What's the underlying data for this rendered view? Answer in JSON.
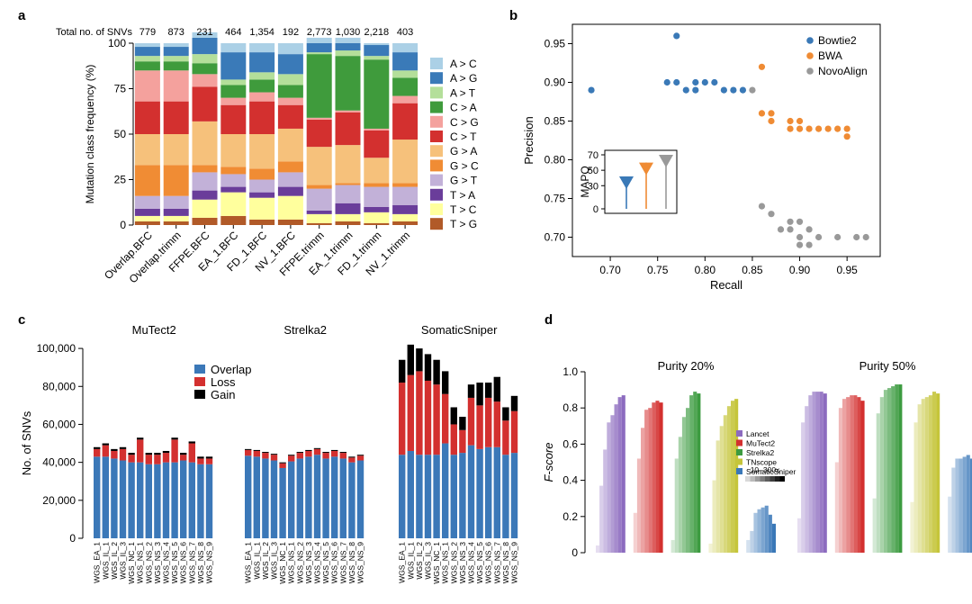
{
  "colors": {
    "A>C": "#abd0e6",
    "A>G": "#3a7ab8",
    "A>T": "#b4df9a",
    "C>A": "#3f9b3c",
    "C>G": "#f4a19d",
    "C>T": "#d3302f",
    "G>A": "#f6c17b",
    "G>C": "#f08c34",
    "G>T": "#c2b1d8",
    "T>A": "#6a3d9a",
    "T>C": "#ffff9d",
    "T>G": "#b15a28",
    "bowtie": "#3a79b7",
    "bwa": "#ef8b34",
    "novo": "#999999",
    "overlap": "#3b78b8",
    "loss": "#d3302f",
    "gain": "#000000",
    "lancet": "#8c6bbf",
    "mutect": "#d3302f",
    "strelka": "#3c9b40",
    "tnscope": "#c5c53a",
    "somatic": "#3a78b8"
  },
  "panel_a": {
    "letter": "a",
    "header_label": "Total no. of SNVs",
    "totals": [
      "779",
      "873",
      "231",
      "464",
      "1,354",
      "192",
      "2,773",
      "1,030",
      "2,218",
      "403"
    ]
  },
  "panel_b": {
    "letter": "b"
  },
  "panel_c": {
    "letter": "c"
  },
  "panel_d": {
    "letter": "d"
  },
  "chart_data": [
    {
      "type": "bar",
      "stacked": true,
      "title": "",
      "ylabel": "Mutation class frequency (%)",
      "ylim": [
        0,
        100
      ],
      "yticks": [
        "0",
        "25",
        "50",
        "75",
        "100"
      ],
      "categories": [
        "Overlap.BFC",
        "Overlap.trimm",
        "FFPE.BFC",
        "EA_1.BFC",
        "FD_1.BFC",
        "NV_1.BFC",
        "FFPE.trimm",
        "EA_1.trimm",
        "FD_1.trimm",
        "NV_1.trimm"
      ],
      "legend": [
        "A > C",
        "A > G",
        "A > T",
        "C > A",
        "C > G",
        "C > T",
        "G > A",
        "G > C",
        "G > T",
        "T > A",
        "T > C",
        "T > G"
      ],
      "series": [
        {
          "name": "T > G",
          "key": "T>G",
          "values": [
            2,
            2,
            4,
            5,
            3,
            3,
            1,
            2,
            1,
            2
          ]
        },
        {
          "name": "T > C",
          "key": "T>C",
          "values": [
            3,
            3,
            10,
            13,
            12,
            13,
            5,
            4,
            6,
            4
          ]
        },
        {
          "name": "T > A",
          "key": "T>A",
          "values": [
            4,
            4,
            5,
            3,
            3,
            5,
            2,
            6,
            3,
            5
          ]
        },
        {
          "name": "G > T",
          "key": "G>T",
          "values": [
            7,
            7,
            10,
            7,
            7,
            8,
            12,
            10,
            11,
            10
          ]
        },
        {
          "name": "G > C",
          "key": "G>C",
          "values": [
            17,
            17,
            4,
            4,
            6,
            6,
            2,
            1,
            2,
            2
          ]
        },
        {
          "name": "G > A",
          "key": "G>A",
          "values": [
            17,
            17,
            24,
            18,
            19,
            18,
            21,
            21,
            14,
            24
          ]
        },
        {
          "name": "C > T",
          "key": "C>T",
          "values": [
            18,
            18,
            19,
            16,
            18,
            13,
            15,
            18,
            15,
            20
          ]
        },
        {
          "name": "C > G",
          "key": "C>G",
          "values": [
            17,
            17,
            7,
            4,
            5,
            4,
            1,
            1,
            1,
            4
          ]
        },
        {
          "name": "C > A",
          "key": "C>A",
          "values": [
            5,
            5,
            6,
            7,
            7,
            7,
            35,
            30,
            38,
            10
          ]
        },
        {
          "name": "A > T",
          "key": "A>T",
          "values": [
            3,
            3,
            5,
            3,
            4,
            6,
            1,
            3,
            2,
            4
          ]
        },
        {
          "name": "A > G",
          "key": "A>G",
          "values": [
            5,
            5,
            9,
            15,
            11,
            11,
            5,
            4,
            6,
            10
          ]
        },
        {
          "name": "A > C",
          "key": "A>C",
          "values": [
            2,
            2,
            3,
            5,
            5,
            6,
            3,
            3,
            1,
            5
          ]
        }
      ]
    },
    {
      "type": "scatter",
      "xlabel": "Recall",
      "ylabel": "Precision",
      "xlim": [
        0.66,
        0.985
      ],
      "ylim": [
        0.675,
        0.975
      ],
      "xticks": [
        "0.70",
        "0.75",
        "0.80",
        "0.85",
        "0.90",
        "0.95"
      ],
      "yticks": [
        "0.70",
        "0.75",
        "0.80",
        "0.85",
        "0.90",
        "0.95"
      ],
      "series": [
        {
          "name": "Bowtie2",
          "key": "bowtie",
          "points": [
            [
              0.68,
              0.89
            ],
            [
              0.77,
              0.96
            ],
            [
              0.76,
              0.9
            ],
            [
              0.77,
              0.9
            ],
            [
              0.78,
              0.89
            ],
            [
              0.79,
              0.9
            ],
            [
              0.8,
              0.9
            ],
            [
              0.81,
              0.9
            ],
            [
              0.82,
              0.89
            ],
            [
              0.83,
              0.89
            ],
            [
              0.84,
              0.89
            ],
            [
              0.79,
              0.89
            ]
          ]
        },
        {
          "name": "BWA",
          "key": "bwa",
          "points": [
            [
              0.86,
              0.92
            ],
            [
              0.86,
              0.86
            ],
            [
              0.87,
              0.86
            ],
            [
              0.87,
              0.85
            ],
            [
              0.89,
              0.85
            ],
            [
              0.9,
              0.85
            ],
            [
              0.89,
              0.84
            ],
            [
              0.9,
              0.84
            ],
            [
              0.91,
              0.84
            ],
            [
              0.92,
              0.84
            ],
            [
              0.93,
              0.84
            ],
            [
              0.94,
              0.84
            ],
            [
              0.95,
              0.84
            ],
            [
              0.95,
              0.83
            ]
          ]
        },
        {
          "name": "NovoAlign",
          "key": "novo",
          "points": [
            [
              0.85,
              0.89
            ],
            [
              0.86,
              0.74
            ],
            [
              0.87,
              0.73
            ],
            [
              0.88,
              0.71
            ],
            [
              0.89,
              0.72
            ],
            [
              0.9,
              0.72
            ],
            [
              0.89,
              0.71
            ],
            [
              0.91,
              0.71
            ],
            [
              0.9,
              0.7
            ],
            [
              0.92,
              0.7
            ],
            [
              0.9,
              0.69
            ],
            [
              0.91,
              0.69
            ],
            [
              0.94,
              0.7
            ],
            [
              0.96,
              0.7
            ],
            [
              0.97,
              0.7
            ]
          ]
        }
      ],
      "inset": {
        "ylabel": "MAPQ",
        "ylim": [
          0,
          70
        ],
        "yticks": [
          "0",
          "30",
          "50",
          "70"
        ],
        "series": [
          {
            "key": "bowtie",
            "min": 0,
            "max": 42
          },
          {
            "key": "bwa",
            "min": 0,
            "max": 60
          },
          {
            "key": "novo",
            "min": 0,
            "max": 70
          }
        ]
      }
    },
    {
      "type": "bar",
      "stacked": true,
      "ylabel": "No. of SNVs",
      "ylim": [
        0,
        110000
      ],
      "yticks": [
        "0",
        "20,000",
        "40,000",
        "60,000",
        "80,000",
        "100,000"
      ],
      "legend": [
        {
          "name": "Overlap",
          "key": "overlap"
        },
        {
          "name": "Loss",
          "key": "loss"
        },
        {
          "name": "Gain",
          "key": "gain"
        }
      ],
      "groups": [
        {
          "title": "MuTect2",
          "categories": [
            "WGS_EA_1",
            "WGS_IL_1",
            "WGS_IL_2",
            "WGS_IL_3",
            "WGS_NC_1",
            "WGS_NS_1",
            "WGS_NS_2",
            "WGS_NS_3",
            "WGS_NS_4",
            "WGS_NS_5",
            "WGS_NS_6",
            "WGS_NS_7",
            "WGS_NS_8",
            "WGS_NS_9"
          ],
          "overlap": [
            43000,
            43000,
            42000,
            41000,
            40000,
            40000,
            39000,
            39000,
            40000,
            40000,
            41000,
            40000,
            39000,
            39000
          ],
          "loss": [
            4000,
            6000,
            4000,
            6000,
            4000,
            12000,
            5000,
            5000,
            5000,
            12000,
            3000,
            10000,
            3000,
            3000
          ],
          "gain": [
            1000,
            1000,
            1000,
            1000,
            1000,
            1000,
            1000,
            1000,
            1000,
            1000,
            1000,
            1000,
            1000,
            1000
          ]
        },
        {
          "title": "Strelka2",
          "categories": [
            "WGS_EA_1",
            "WGS_IL_1",
            "WGS_IL_2",
            "WGS_IL_3",
            "WGS_NC_1",
            "WGS_NS_1",
            "WGS_NS_2",
            "WGS_NS_3",
            "WGS_NS_4",
            "WGS_NS_5",
            "WGS_NS_6",
            "WGS_NS_7",
            "WGS_NS_8",
            "WGS_NS_9"
          ],
          "overlap": [
            43500,
            43000,
            42000,
            41000,
            37000,
            40500,
            42000,
            43000,
            44000,
            42000,
            43000,
            42000,
            40000,
            41000
          ],
          "loss": [
            3000,
            3000,
            3000,
            3000,
            2500,
            3000,
            3000,
            3000,
            3000,
            3000,
            3000,
            3000,
            2500,
            2500
          ],
          "gain": [
            500,
            500,
            500,
            500,
            500,
            500,
            500,
            500,
            500,
            500,
            500,
            500,
            500,
            500
          ]
        },
        {
          "title": "SomaticSniper",
          "categories": [
            "WGS_EA_1",
            "WGS_IL_1",
            "WGS_IL_2",
            "WGS_IL_3",
            "WGS_NC_1",
            "WGS_NS_1",
            "WGS_NS_2",
            "WGS_NS_3",
            "WGS_NS_4",
            "WGS_NS_5",
            "WGS_NS_6",
            "WGS_NS_7",
            "WGS_NS_8",
            "WGS_NS_9"
          ],
          "overlap": [
            44000,
            46000,
            44000,
            44000,
            44000,
            50000,
            44000,
            45000,
            49000,
            47000,
            48000,
            48000,
            44000,
            45000
          ],
          "loss": [
            38000,
            40000,
            44000,
            39000,
            37000,
            26000,
            16000,
            12000,
            25000,
            23000,
            26000,
            24000,
            18000,
            22000
          ],
          "gain": [
            12000,
            16000,
            12000,
            14000,
            13000,
            12000,
            9000,
            7000,
            7000,
            12000,
            8000,
            13000,
            7000,
            8000
          ]
        }
      ]
    },
    {
      "type": "bar",
      "ylabel": "F-score",
      "ylim": [
        0,
        1
      ],
      "yticks": [
        "0",
        "0.2",
        "0.4",
        "0.6",
        "0.8",
        "1.0"
      ],
      "legend": [
        {
          "name": "Lancet",
          "key": "lancet"
        },
        {
          "name": "MuTect2",
          "key": "mutect"
        },
        {
          "name": "Strelka2",
          "key": "strelka"
        },
        {
          "name": "TNscope",
          "key": "tnscope"
        },
        {
          "name": "SomaticSniper",
          "key": "somatic"
        }
      ],
      "gradient_label": "10–300x",
      "groups": [
        {
          "title": "Purity 20%",
          "series": [
            {
              "key": "lancet",
              "values": [
                0.04,
                0.37,
                0.57,
                0.72,
                0.76,
                0.82,
                0.86,
                0.87
              ]
            },
            {
              "key": "mutect",
              "values": [
                0.22,
                0.52,
                0.69,
                0.79,
                0.8,
                0.83,
                0.84,
                0.83
              ]
            },
            {
              "key": "strelka",
              "values": [
                0.07,
                0.52,
                0.64,
                0.75,
                0.8,
                0.87,
                0.89,
                0.88
              ]
            },
            {
              "key": "tnscope",
              "values": [
                0.05,
                0.4,
                0.62,
                0.7,
                0.76,
                0.81,
                0.84,
                0.85
              ]
            },
            {
              "key": "somatic",
              "values": [
                0.07,
                0.12,
                0.22,
                0.24,
                0.25,
                0.26,
                0.21,
                0.16
              ]
            }
          ]
        },
        {
          "title": "Purity 50%",
          "series": [
            {
              "key": "lancet",
              "values": [
                0.19,
                0.72,
                0.81,
                0.87,
                0.89,
                0.89,
                0.89,
                0.88
              ]
            },
            {
              "key": "mutect",
              "values": [
                0.5,
                0.8,
                0.85,
                0.86,
                0.87,
                0.87,
                0.86,
                0.84
              ]
            },
            {
              "key": "strelka",
              "values": [
                0.3,
                0.77,
                0.86,
                0.9,
                0.91,
                0.92,
                0.93,
                0.93
              ]
            },
            {
              "key": "tnscope",
              "values": [
                0.28,
                0.72,
                0.82,
                0.85,
                0.86,
                0.87,
                0.89,
                0.88
              ]
            },
            {
              "key": "somatic",
              "values": [
                0.31,
                0.47,
                0.52,
                0.52,
                0.53,
                0.54,
                0.52,
                0.52
              ]
            }
          ]
        }
      ]
    }
  ]
}
